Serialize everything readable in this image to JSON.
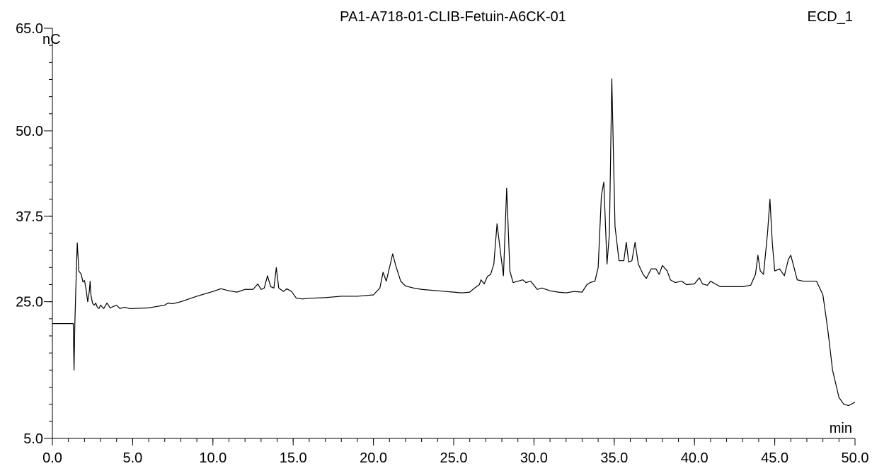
{
  "chart_data": {
    "type": "line",
    "title": "PA1-A718-01-CLIB-Fetuin-A6CK-01",
    "channel": "ECD_1",
    "ylabel": "nC",
    "xlabel": "min",
    "xlim": [
      0,
      50
    ],
    "ylim": [
      5,
      65
    ],
    "x_ticks": [
      "0.0",
      "5.0",
      "10.0",
      "15.0",
      "20.0",
      "25.0",
      "30.0",
      "35.0",
      "40.0",
      "45.0",
      "50.0"
    ],
    "y_ticks": [
      "5.0",
      "25.0",
      "37.5",
      "50.0",
      "65.0"
    ],
    "grid": false,
    "series": [
      {
        "color": "#000000",
        "points": [
          [
            0.0,
            21.8
          ],
          [
            1.3,
            21.8
          ],
          [
            1.35,
            15.0
          ],
          [
            1.4,
            21.8
          ],
          [
            1.5,
            30.0
          ],
          [
            1.55,
            33.6
          ],
          [
            1.65,
            29.5
          ],
          [
            1.8,
            29.0
          ],
          [
            1.9,
            27.9
          ],
          [
            2.0,
            28.1
          ],
          [
            2.1,
            26.8
          ],
          [
            2.2,
            25.0
          ],
          [
            2.3,
            26.5
          ],
          [
            2.35,
            28.0
          ],
          [
            2.4,
            26.0
          ],
          [
            2.5,
            24.8
          ],
          [
            2.6,
            24.5
          ],
          [
            2.7,
            24.8
          ],
          [
            2.8,
            24.2
          ],
          [
            2.9,
            24.0
          ],
          [
            3.0,
            24.5
          ],
          [
            3.2,
            24.0
          ],
          [
            3.4,
            24.8
          ],
          [
            3.6,
            24.1
          ],
          [
            3.8,
            24.3
          ],
          [
            4.0,
            24.5
          ],
          [
            4.2,
            24.0
          ],
          [
            4.5,
            24.2
          ],
          [
            4.8,
            24.0
          ],
          [
            5.0,
            24.0
          ],
          [
            6.0,
            24.1
          ],
          [
            6.5,
            24.3
          ],
          [
            7.0,
            24.5
          ],
          [
            7.2,
            24.8
          ],
          [
            7.5,
            24.7
          ],
          [
            8.0,
            25.0
          ],
          [
            9.0,
            25.8
          ],
          [
            10.0,
            26.5
          ],
          [
            10.5,
            26.9
          ],
          [
            11.0,
            26.6
          ],
          [
            11.5,
            26.4
          ],
          [
            12.0,
            26.8
          ],
          [
            12.5,
            26.8
          ],
          [
            12.8,
            27.6
          ],
          [
            13.0,
            26.8
          ],
          [
            13.2,
            27.0
          ],
          [
            13.4,
            28.8
          ],
          [
            13.6,
            27.2
          ],
          [
            13.8,
            27.0
          ],
          [
            13.95,
            30.0
          ],
          [
            14.1,
            27.0
          ],
          [
            14.4,
            26.5
          ],
          [
            14.6,
            26.9
          ],
          [
            14.9,
            26.5
          ],
          [
            15.2,
            25.5
          ],
          [
            15.6,
            25.4
          ],
          [
            16.0,
            25.5
          ],
          [
            17.0,
            25.6
          ],
          [
            18.0,
            25.8
          ],
          [
            19.0,
            25.8
          ],
          [
            20.0,
            26.0
          ],
          [
            20.4,
            27.0
          ],
          [
            20.6,
            29.3
          ],
          [
            20.8,
            28.0
          ],
          [
            21.0,
            30.0
          ],
          [
            21.2,
            32.0
          ],
          [
            21.4,
            30.2
          ],
          [
            21.7,
            28.0
          ],
          [
            22.0,
            27.3
          ],
          [
            22.5,
            27.0
          ],
          [
            23.0,
            26.8
          ],
          [
            24.0,
            26.6
          ],
          [
            25.0,
            26.4
          ],
          [
            25.5,
            26.3
          ],
          [
            26.0,
            26.4
          ],
          [
            26.3,
            27.0
          ],
          [
            26.6,
            27.5
          ],
          [
            26.7,
            28.2
          ],
          [
            26.9,
            27.6
          ],
          [
            27.1,
            28.7
          ],
          [
            27.3,
            29.0
          ],
          [
            27.5,
            30.5
          ],
          [
            27.7,
            36.4
          ],
          [
            27.9,
            32.5
          ],
          [
            28.1,
            28.8
          ],
          [
            28.3,
            41.6
          ],
          [
            28.5,
            29.5
          ],
          [
            28.7,
            27.8
          ],
          [
            29.0,
            28.0
          ],
          [
            29.3,
            28.2
          ],
          [
            29.5,
            27.8
          ],
          [
            29.8,
            28.0
          ],
          [
            30.2,
            26.8
          ],
          [
            30.5,
            27.0
          ],
          [
            31.0,
            26.6
          ],
          [
            31.5,
            26.4
          ],
          [
            32.0,
            26.3
          ],
          [
            32.5,
            26.5
          ],
          [
            33.0,
            26.4
          ],
          [
            33.3,
            27.5
          ],
          [
            33.5,
            27.8
          ],
          [
            33.8,
            28.0
          ],
          [
            34.0,
            30.0
          ],
          [
            34.2,
            40.5
          ],
          [
            34.35,
            42.5
          ],
          [
            34.55,
            30.5
          ],
          [
            34.7,
            35.0
          ],
          [
            34.85,
            57.6
          ],
          [
            35.05,
            36.0
          ],
          [
            35.3,
            31.0
          ],
          [
            35.6,
            31.0
          ],
          [
            35.75,
            33.7
          ],
          [
            35.9,
            30.8
          ],
          [
            36.1,
            31.0
          ],
          [
            36.3,
            33.7
          ],
          [
            36.5,
            30.5
          ],
          [
            36.8,
            29.0
          ],
          [
            37.0,
            28.4
          ],
          [
            37.3,
            29.8
          ],
          [
            37.6,
            29.8
          ],
          [
            37.8,
            29.0
          ],
          [
            38.0,
            30.3
          ],
          [
            38.3,
            29.5
          ],
          [
            38.5,
            28.2
          ],
          [
            38.8,
            27.8
          ],
          [
            39.2,
            28.0
          ],
          [
            39.5,
            27.5
          ],
          [
            40.0,
            27.6
          ],
          [
            40.3,
            28.5
          ],
          [
            40.5,
            27.6
          ],
          [
            40.8,
            27.4
          ],
          [
            41.0,
            28.0
          ],
          [
            41.3,
            27.6
          ],
          [
            41.6,
            27.2
          ],
          [
            42.0,
            27.2
          ],
          [
            43.0,
            27.2
          ],
          [
            43.5,
            27.4
          ],
          [
            43.8,
            29.0
          ],
          [
            43.95,
            31.8
          ],
          [
            44.1,
            29.5
          ],
          [
            44.3,
            29.0
          ],
          [
            44.55,
            35.0
          ],
          [
            44.7,
            40.0
          ],
          [
            44.85,
            33.5
          ],
          [
            45.0,
            29.5
          ],
          [
            45.3,
            29.8
          ],
          [
            45.6,
            28.8
          ],
          [
            45.85,
            31.2
          ],
          [
            46.0,
            31.8
          ],
          [
            46.2,
            30.0
          ],
          [
            46.4,
            28.2
          ],
          [
            46.8,
            28.0
          ],
          [
            47.3,
            28.0
          ],
          [
            47.6,
            28.0
          ],
          [
            48.0,
            26.0
          ],
          [
            48.3,
            21.0
          ],
          [
            48.6,
            15.0
          ],
          [
            49.0,
            11.0
          ],
          [
            49.3,
            10.0
          ],
          [
            49.6,
            9.8
          ],
          [
            50.0,
            10.3
          ]
        ]
      }
    ]
  }
}
